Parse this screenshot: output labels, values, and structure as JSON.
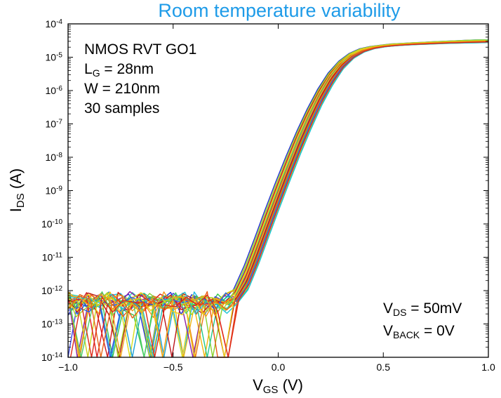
{
  "chart_data": {
    "type": "line",
    "title": "Room temperature variability",
    "xlabel": {
      "main": "V",
      "sub": "GS",
      "suffix": " (V)"
    },
    "ylabel": {
      "main": "I",
      "sub": "DS",
      "suffix": " (A)"
    },
    "xlim": [
      -1.0,
      1.0
    ],
    "ylim": [
      1e-14,
      0.0001
    ],
    "yscale": "log",
    "x_ticks": [
      {
        "value": -1.0,
        "label": "−1.0"
      },
      {
        "value": -0.5,
        "label": "−0.5"
      },
      {
        "value": 0.0,
        "label": "0.0"
      },
      {
        "value": 0.5,
        "label": "0.5"
      },
      {
        "value": 1.0,
        "label": "1.0"
      }
    ],
    "y_ticks": [
      {
        "exp": -4,
        "label": "10",
        "sup": "-4"
      },
      {
        "exp": -5,
        "label": "10",
        "sup": "-5"
      },
      {
        "exp": -6,
        "label": "10",
        "sup": "-6"
      },
      {
        "exp": -7,
        "label": "10",
        "sup": "-7"
      },
      {
        "exp": -8,
        "label": "10",
        "sup": "-8"
      },
      {
        "exp": -9,
        "label": "10",
        "sup": "-9"
      },
      {
        "exp": -10,
        "label": "10",
        "sup": "-10"
      },
      {
        "exp": -11,
        "label": "10",
        "sup": "-11"
      },
      {
        "exp": -12,
        "label": "10",
        "sup": "-12"
      },
      {
        "exp": -13,
        "label": "10",
        "sup": "-13"
      },
      {
        "exp": -14,
        "label": "10",
        "sup": "-14"
      }
    ],
    "grid": false,
    "sample_count": 30,
    "series_colors": [
      "#1f2fd0",
      "#0a7fe6",
      "#19b6e8",
      "#2fd0b0",
      "#35c54a",
      "#8ad12c",
      "#d9dc1e",
      "#f1b40f",
      "#f07a14",
      "#e83418",
      "#d11a1a",
      "#8a1fa8",
      "#3d49e0",
      "#1aa0d8",
      "#22c98a",
      "#6ccc2a",
      "#c8d21a",
      "#eec21c",
      "#f39519",
      "#ea5a16",
      "#e01c1c",
      "#b9141a",
      "#2a62e8",
      "#1ec4d4",
      "#4fd06a",
      "#a4d822",
      "#ead01a",
      "#f0a418",
      "#e86516",
      "#de2a18"
    ],
    "series": [
      {
        "x": [
          -1.0,
          -0.95,
          -0.9,
          -0.85,
          -0.8,
          -0.75,
          -0.7,
          -0.65,
          -0.6,
          -0.55,
          -0.5,
          -0.45,
          -0.4,
          -0.35,
          -0.3,
          -0.25,
          -0.2,
          -0.15,
          -0.1,
          -0.05,
          0.0,
          0.05,
          0.1,
          0.15,
          0.2,
          0.25,
          0.3,
          0.35,
          0.4,
          0.45,
          0.5,
          0.55,
          0.6,
          0.65,
          0.7,
          0.75,
          0.8,
          0.85,
          0.9,
          0.95,
          1.0
        ],
        "y": [
          3.3e-13,
          5.5e-13,
          2.6e-13,
          6.8e-13,
          3e-13,
          4.4e-13,
          5.7e-13,
          3e-13,
          5.3e-13,
          4e-13,
          6e-13,
          2.9e-13,
          5.1e-13,
          4.6e-13,
          3.2e-13,
          5.4e-13,
          1.1e-12,
          5.6e-12,
          3.8e-11,
          2.7e-10,
          1.8e-09,
          1.1e-08,
          6e-08,
          2.8e-07,
          1.1e-06,
          3.4e-06,
          7.6e-06,
          1.3e-05,
          1.8e-05,
          2.1e-05,
          2.3e-05,
          2.5e-05,
          2.6e-05,
          2.7e-05,
          2.8e-05,
          2.9e-05,
          3e-05,
          3.1e-05,
          3.2e-05,
          3.3e-05,
          3.3e-05
        ]
      },
      {
        "x": [
          -1.0,
          -0.95,
          -0.9,
          -0.85,
          -0.8,
          -0.75,
          -0.7,
          -0.65,
          -0.6,
          -0.55,
          -0.5,
          -0.45,
          -0.4,
          -0.35,
          -0.3,
          -0.25,
          -0.2,
          -0.15,
          -0.1,
          -0.05,
          0.0,
          0.05,
          0.1,
          0.15,
          0.2,
          0.25,
          0.3,
          0.35,
          0.4,
          0.45,
          0.5,
          0.55,
          0.6,
          0.65,
          0.7,
          0.75,
          0.8,
          0.85,
          0.9,
          0.95,
          1.0
        ],
        "y": [
          6.2e-13,
          2.8e-13,
          4.9e-13,
          3.5e-13,
          7.1e-13,
          2.7e-13,
          4.5e-13,
          6.3e-13,
          3.1e-13,
          5.6e-13,
          3.7e-13,
          6.6e-13,
          2.8e-13,
          5.2e-13,
          4.1e-13,
          3.9e-13,
          9e-13,
          4.3e-12,
          2.9e-11,
          2.1e-10,
          1.4e-09,
          8.9e-09,
          5.1e-08,
          2.4e-07,
          9.6e-07,
          3.1e-06,
          7.2e-06,
          1.25e-05,
          1.75e-05,
          2.05e-05,
          2.25e-05,
          2.42e-05,
          2.55e-05,
          2.66e-05,
          2.76e-05,
          2.85e-05,
          2.94e-05,
          3.03e-05,
          3.1e-05,
          3.17e-05,
          3.22e-05
        ]
      },
      {
        "x": [
          -1.0,
          -0.95,
          -0.9,
          -0.85,
          -0.8,
          -0.75,
          -0.7,
          -0.65,
          -0.6,
          -0.55,
          -0.5,
          -0.45,
          -0.4,
          -0.35,
          -0.3,
          -0.25,
          -0.2,
          -0.15,
          -0.1,
          -0.05,
          0.0,
          0.05,
          0.1,
          0.15,
          0.2,
          0.25,
          0.3,
          0.35,
          0.4,
          0.45,
          0.5,
          0.55,
          0.6,
          0.65,
          0.7,
          0.75,
          0.8,
          0.85,
          0.9,
          0.95,
          1.0
        ],
        "y": [
          4.1e-13,
          3.6e-13,
          5.8e-13,
          2.9e-13,
          4.8e-13,
          6.5e-13,
          3.3e-13,
          4.7e-13,
          2.6e-13,
          6.9e-13,
          4.3e-13,
          3.4e-13,
          5.9e-13,
          2.7e-13,
          6.1e-13,
          3.6e-13,
          7.5e-13,
          3.2e-12,
          2.2e-11,
          1.6e-10,
          1.1e-09,
          7.1e-09,
          4.2e-08,
          2e-07,
          8.4e-07,
          2.8e-06,
          6.7e-06,
          1.2e-05,
          1.7e-05,
          2e-05,
          2.2e-05,
          2.38e-05,
          2.5e-05,
          2.6e-05,
          2.7e-05,
          2.78e-05,
          2.86e-05,
          2.93e-05,
          3e-05,
          3.06e-05,
          3.1e-05
        ]
      },
      {
        "x": [
          -1.0,
          -0.95,
          -0.9,
          -0.85,
          -0.8,
          -0.75,
          -0.7,
          -0.65,
          -0.6,
          -0.55,
          -0.5,
          -0.45,
          -0.4,
          -0.35,
          -0.3,
          -0.25,
          -0.2,
          -0.15,
          -0.1,
          -0.05,
          0.0,
          0.05,
          0.1,
          0.15,
          0.2,
          0.25,
          0.3,
          0.35,
          0.4,
          0.45,
          0.5,
          0.55,
          0.6,
          0.65,
          0.7,
          0.75,
          0.8,
          0.85,
          0.9,
          0.95,
          1.0
        ],
        "y": [
          5.4e-13,
          4.7e-13,
          3e-13,
          5.5e-13,
          3.9e-13,
          2.8e-13,
          6.8e-13,
          3.7e-13,
          4.9e-13,
          3.2e-13,
          5.2e-13,
          4.4e-13,
          3.5e-13,
          6.4e-13,
          2.9e-13,
          4.6e-13,
          6.5e-13,
          2.5e-12,
          1.7e-11,
          1.2e-10,
          8.5e-10,
          5.6e-09,
          3.4e-08,
          1.7e-07,
          7.3e-07,
          2.5e-06,
          6.2e-06,
          1.14e-05,
          1.64e-05,
          1.96e-05,
          2.17e-05,
          2.33e-05,
          2.45e-05,
          2.55e-05,
          2.64e-05,
          2.72e-05,
          2.8e-05,
          2.87e-05,
          2.93e-05,
          2.98e-05,
          3.02e-05
        ]
      },
      {
        "x": [
          -1.0,
          -0.95,
          -0.9,
          -0.85,
          -0.8,
          -0.75,
          -0.7,
          -0.65,
          -0.6,
          -0.55,
          -0.5,
          -0.45,
          -0.4,
          -0.35,
          -0.3,
          -0.25,
          -0.2,
          -0.15,
          -0.1,
          -0.05,
          0.0,
          0.05,
          0.1,
          0.15,
          0.2,
          0.25,
          0.3,
          0.35,
          0.4,
          0.45,
          0.5,
          0.55,
          0.6,
          0.65,
          0.7,
          0.75,
          0.8,
          0.85,
          0.9,
          0.95,
          1.0
        ],
        "y": [
          2.9e-13,
          6.4e-13,
          4.2e-13,
          3.6e-13,
          5.9e-13,
          4e-13,
          2.7e-13,
          5.8e-13,
          4.1e-13,
          2.8e-13,
          6.3e-13,
          3.8e-13,
          4.8e-13,
          3.1e-13,
          5.5e-13,
          4.2e-13,
          5.8e-13,
          2e-12,
          1.3e-11,
          9.5e-11,
          6.6e-10,
          4.4e-09,
          2.7e-08,
          1.4e-07,
          6.2e-07,
          2.2e-06,
          5.7e-06,
          1.08e-05,
          1.58e-05,
          1.92e-05,
          2.13e-05,
          2.28e-05,
          2.4e-05,
          2.5e-05,
          2.58e-05,
          2.66e-05,
          2.74e-05,
          2.8e-05,
          2.86e-05,
          2.91e-05,
          2.95e-05
        ]
      },
      {
        "x": [
          -1.0,
          -0.95,
          -0.9,
          -0.85,
          -0.8,
          -0.75,
          -0.7,
          -0.65,
          -0.6,
          -0.55,
          -0.5,
          -0.45,
          -0.4,
          -0.35,
          -0.3,
          -0.25,
          -0.2,
          -0.15,
          -0.1,
          -0.05,
          0.0,
          0.05,
          0.1,
          0.15,
          0.2,
          0.25,
          0.3,
          0.35,
          0.4,
          0.45,
          0.5,
          0.55,
          0.6,
          0.65,
          0.7,
          0.75,
          0.8,
          0.85,
          0.9,
          0.95,
          1.0
        ],
        "y": [
          4.6e-13,
          3.1e-13,
          6.1e-13,
          4.4e-13,
          2.8e-13,
          5.6e-13,
          4.6e-13,
          3.3e-13,
          6.2e-13,
          4.5e-13,
          3e-13,
          5.7e-13,
          4e-13,
          5.3e-13,
          3.7e-13,
          5e-13,
          5.2e-13,
          1.6e-12,
          1e-11,
          7.3e-11,
          5.1e-10,
          3.4e-09,
          2.1e-08,
          1.1e-07,
          5.2e-07,
          1.9e-06,
          5.2e-06,
          1.02e-05,
          1.52e-05,
          1.88e-05,
          2.1e-05,
          2.25e-05,
          2.36e-05,
          2.45e-05,
          2.53e-05,
          2.6e-05,
          2.67e-05,
          2.73e-05,
          2.79e-05,
          2.84e-05,
          2.88e-05
        ]
      },
      {
        "x": [
          -1.0,
          -0.95,
          -0.9,
          -0.85,
          -0.8,
          -0.75,
          -0.7,
          -0.65,
          -0.6,
          -0.55,
          -0.5,
          -0.45,
          -0.4,
          -0.35,
          -0.3,
          -0.25,
          -0.2,
          -0.15,
          -0.1,
          -0.05,
          0.0,
          0.05,
          0.1,
          0.15,
          0.2,
          0.25,
          0.3,
          0.35,
          0.4,
          0.45,
          0.5,
          0.55,
          0.6,
          0.65,
          0.7,
          0.75,
          0.8,
          0.85,
          0.9,
          0.95,
          1.0
        ],
        "y": [
          3.8e-13,
          5.2e-13,
          3.4e-13,
          6e-13,
          4.5e-13,
          3.2e-13,
          5.1e-13,
          6.6e-13,
          3.4e-13,
          5e-13,
          4.7e-13,
          3.1e-13,
          6.3e-13,
          4.3e-13,
          3.4e-13,
          5.8e-13,
          4.7e-13,
          1.3e-12,
          7.8e-12,
          5.6e-11,
          3.9e-10,
          2.6e-09,
          1.6e-08,
          8.8e-08,
          4.3e-07,
          1.6e-06,
          4.7e-06,
          9.6e-06,
          1.46e-05,
          1.84e-05,
          2.07e-05,
          2.22e-05,
          2.33e-05,
          2.42e-05,
          2.49e-05,
          2.56e-05,
          2.62e-05,
          2.68e-05,
          2.73e-05,
          2.78e-05,
          2.82e-05
        ]
      },
      {
        "x": [
          -1.0,
          -0.95,
          -0.9,
          -0.85,
          -0.8,
          -0.75,
          -0.7,
          -0.65,
          -0.6,
          -0.55,
          -0.5,
          -0.45,
          -0.4,
          -0.35,
          -0.3,
          -0.25,
          -0.2,
          -0.15,
          -0.1,
          -0.05,
          0.0,
          0.05,
          0.1,
          0.15,
          0.2,
          0.25,
          0.3,
          0.35,
          0.4,
          0.45,
          0.5,
          0.55,
          0.6,
          0.65,
          0.7,
          0.75,
          0.8,
          0.85,
          0.9,
          0.95,
          1.0
        ],
        "y": [
          5.9e-13,
          4e-13,
          5.5e-13,
          3.1e-13,
          6.3e-13,
          4.9e-13,
          3.6e-13,
          4.4e-13,
          5.7e-13,
          3.5e-13,
          5.4e-13,
          6.1e-13,
          3.3e-13,
          5e-13,
          6e-13,
          3.3e-13,
          4.2e-13,
          1.05e-12,
          6e-12,
          4.3e-11,
          3e-10,
          2e-09,
          1.25e-08,
          7e-08,
          3.5e-07,
          1.35e-06,
          4.2e-06,
          9e-06,
          1.4e-05,
          1.8e-05,
          2.04e-05,
          2.19e-05,
          2.3e-05,
          2.38e-05,
          2.45e-05,
          2.52e-05,
          2.58e-05,
          2.63e-05,
          2.68e-05,
          2.72e-05,
          2.76e-05
        ]
      }
    ],
    "annotations_topleft": [
      {
        "main": "NMOS RVT GO1"
      },
      {
        "main": "L",
        "sub": "G",
        "suffix": " = 28nm"
      },
      {
        "main": "W = 210nm"
      },
      {
        "main": "30 samples"
      }
    ],
    "annotations_bottomright": [
      {
        "main": "V",
        "sub": "DS",
        "suffix": " = 50mV"
      },
      {
        "main": "V",
        "sub": "BACK",
        "suffix": " = 0V"
      }
    ]
  }
}
